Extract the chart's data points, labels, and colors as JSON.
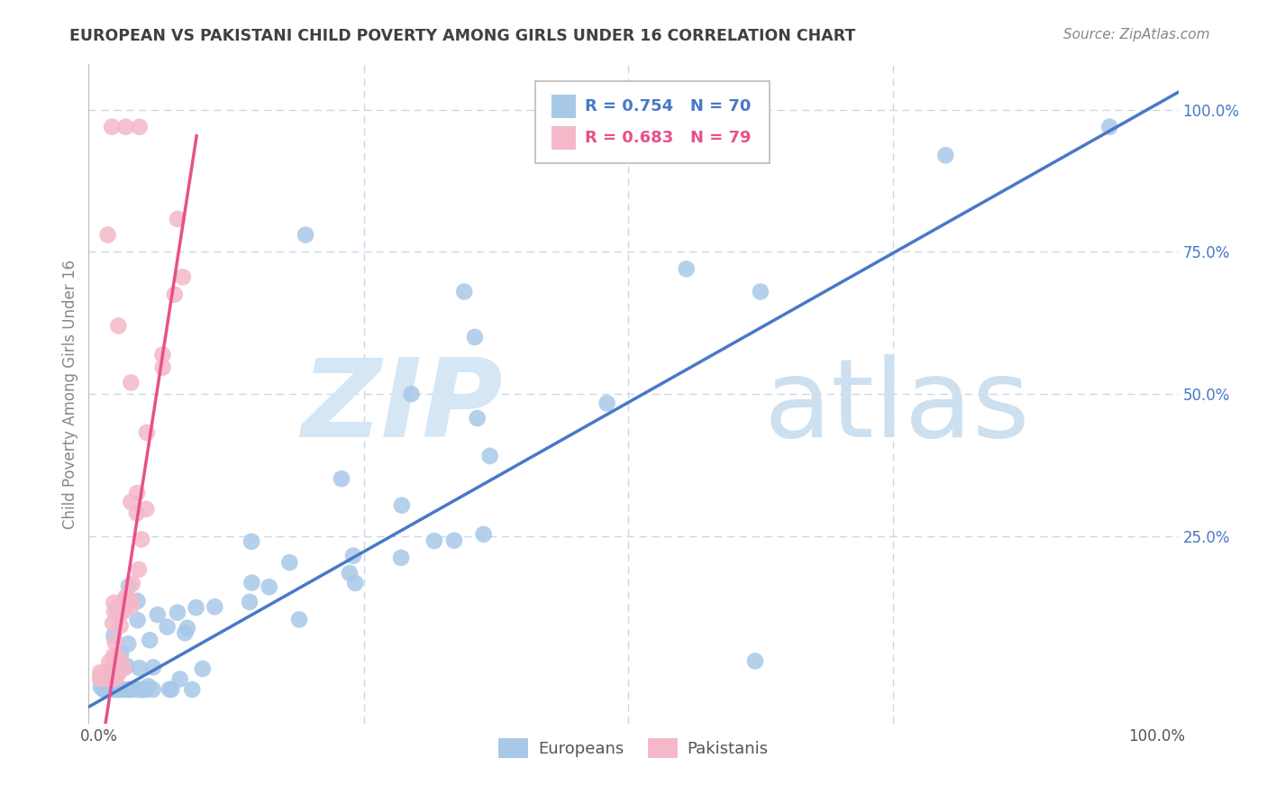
{
  "title": "EUROPEAN VS PAKISTANI CHILD POVERTY AMONG GIRLS UNDER 16 CORRELATION CHART",
  "source": "Source: ZipAtlas.com",
  "ylabel": "Child Poverty Among Girls Under 16",
  "watermark_zip": "ZIP",
  "watermark_atlas": "atlas",
  "legend_r1": "R = 0.754",
  "legend_n1": "N = 70",
  "legend_r2": "R = 0.683",
  "legend_n2": "N = 79",
  "blue_scatter_color": "#a8c8e8",
  "pink_scatter_color": "#f4b8c8",
  "blue_line_color": "#4878c8",
  "pink_line_color": "#e8508a",
  "background_color": "#ffffff",
  "grid_color": "#c8d8e8",
  "tick_color": "#4878c8",
  "ylabel_color": "#888888",
  "title_color": "#404040",
  "source_color": "#888888",
  "blue_slope": 1.05,
  "blue_intercept": -0.04,
  "pink_slope": 12.0,
  "pink_intercept": -0.15,
  "xlim_min": -0.01,
  "xlim_max": 1.02,
  "ylim_min": -0.08,
  "ylim_max": 1.08
}
